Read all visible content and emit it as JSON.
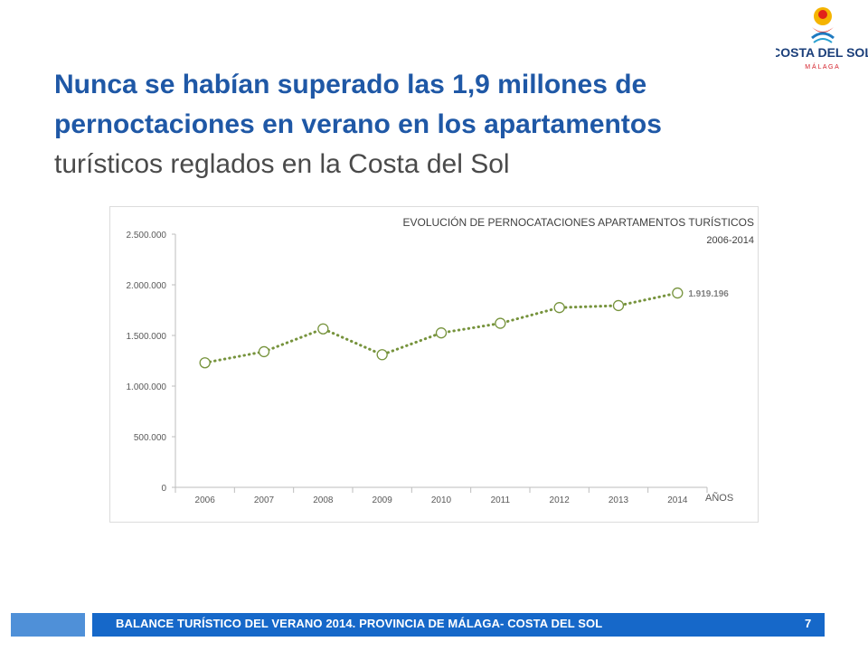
{
  "logo": {
    "text": "COSTA DEL SOL",
    "subtext": "M Á L A G A"
  },
  "title": {
    "line1": "Nunca se habían superado las 1,9 millones de",
    "line2": "pernoctaciones  en verano en los apartamentos",
    "line3": "turísticos reglados en la Costa del Sol"
  },
  "chart_data": {
    "type": "line",
    "title": "EVOLUCIÓN DE PERNOCATACIONES APARTAMENTOS TURÍSTICOS",
    "subtitle": "2006-2014",
    "xlabel": "AÑOS",
    "ylabel": "",
    "ylim": [
      0,
      2500000
    ],
    "yticks": [
      0,
      500000,
      1000000,
      1500000,
      2000000,
      2500000
    ],
    "ytick_labels": [
      "0",
      "500.000",
      "1.000.000",
      "1.500.000",
      "2.000.000",
      "2.500.000"
    ],
    "categories": [
      "2006",
      "2007",
      "2008",
      "2009",
      "2010",
      "2011",
      "2012",
      "2013",
      "2014"
    ],
    "series": [
      {
        "values": [
          1230000,
          1340000,
          1565000,
          1310000,
          1525000,
          1620000,
          1775000,
          1795000,
          1919196
        ]
      }
    ],
    "annotations": [
      {
        "category": "2014",
        "text": "1.919.196"
      }
    ],
    "line_color": "#76933c",
    "line_style": "dotted",
    "marker": "hollow-circle",
    "grid": false,
    "legend": "none"
  },
  "footer": {
    "text": "BALANCE TURÍSTICO DEL VERANO 2014. PROVINCIA DE MÁLAGA- COSTA DEL SOL",
    "page": "7",
    "color": "#1668c9"
  }
}
